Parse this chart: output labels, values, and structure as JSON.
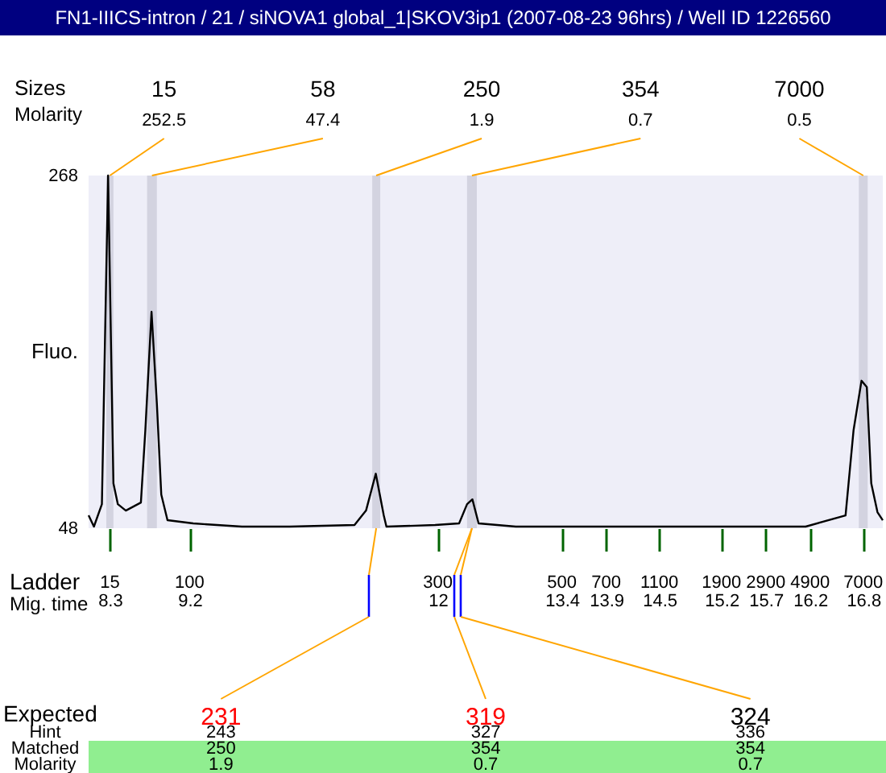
{
  "chart_data": {
    "type": "line",
    "title": "FN1-IIICS-intron / 21 / siNOVA1 global_1|SKOV3ip1 (2007-08-23 96hrs) / Well ID 1226560",
    "xlabel": "Mig. time",
    "ylabel": "Fluo.",
    "x": [
      8.06,
      8.12,
      8.21,
      8.28,
      8.34,
      8.39,
      8.48,
      8.65,
      8.7,
      8.77,
      8.83,
      8.88,
      8.95,
      9.24,
      9.79,
      10.33,
      11.06,
      11.19,
      11.3,
      11.39,
      11.42,
      11.97,
      12.24,
      12.33,
      12.39,
      12.46,
      12.88,
      13.6,
      14.33,
      15.24,
      16.15,
      16.6,
      16.69,
      16.78,
      16.84,
      16.89,
      16.96,
      17.02
    ],
    "series": [
      {
        "color": "#000000",
        "values": [
          56,
          49,
          63,
          268,
          76,
          63,
          59,
          64,
          109,
          183,
          126,
          69,
          53,
          51,
          49,
          49,
          50,
          59,
          82,
          56,
          49,
          50,
          51,
          63,
          66,
          51,
          49,
          49,
          49,
          49,
          49,
          56,
          109,
          140,
          136,
          76,
          58,
          53
        ]
      }
    ],
    "xlim": [
      8.06,
      17.02
    ],
    "ylim": [
      48,
      268
    ],
    "xticks": [
      8.3,
      9.2,
      12,
      13.4,
      13.9,
      14.5,
      15.2,
      15.7,
      16.2,
      16.8
    ],
    "yticks": [
      48,
      268
    ],
    "bands": [
      {
        "axis": "x",
        "from": 8.26,
        "to": 8.34,
        "color": "#d3d3e0"
      },
      {
        "axis": "x",
        "from": 8.72,
        "to": 8.83,
        "color": "#d3d3e0"
      },
      {
        "axis": "x",
        "from": 11.26,
        "to": 11.35,
        "color": "#d3d3e0"
      },
      {
        "axis": "x",
        "from": 12.33,
        "to": 12.44,
        "color": "#d3d3e0"
      },
      {
        "axis": "x",
        "from": 16.75,
        "to": 16.85,
        "color": "#d3d3e0"
      }
    ],
    "annotations": [
      "15",
      "58",
      "250",
      "354",
      "7000",
      {
        "text": "252.5",
        "x": 8.3,
        "y": 268
      },
      {
        "text": "47.4",
        "x": 8.775,
        "y": 268
      },
      {
        "text": "1.9",
        "x": 11.305,
        "y": 268
      },
      {
        "text": "0.7",
        "x": 12.385,
        "y": 268
      },
      {
        "text": "0.5",
        "x": 16.8,
        "y": 268
      },
      "15",
      "100",
      "300",
      "500",
      "700",
      "1100",
      "1900",
      "2900",
      "4900",
      "7000",
      "231",
      "319",
      "324",
      "243",
      "327",
      "336",
      "250",
      "354",
      "354",
      "1.9",
      "0.7",
      "0.7",
      "Sizes",
      "Molarity",
      "Ladder",
      "Expected",
      "Hint",
      "Matched",
      "Molarity"
    ]
  }
}
